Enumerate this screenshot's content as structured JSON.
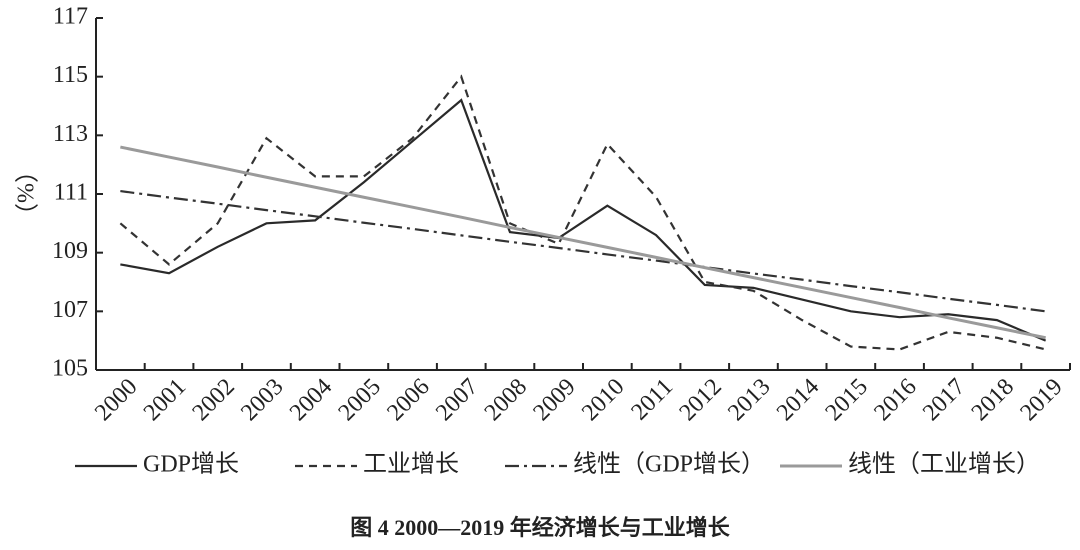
{
  "chart_data": {
    "type": "line",
    "title": "图 4 2000—2019 年经济增长与工业增长",
    "y_label": "（%）",
    "categories": [
      "2000",
      "2001",
      "2002",
      "2003",
      "2004",
      "2005",
      "2006",
      "2007",
      "2008",
      "2009",
      "2010",
      "2011",
      "2012",
      "2013",
      "2014",
      "2015",
      "2016",
      "2017",
      "2018",
      "2019"
    ],
    "series": [
      {
        "name": "GDP增长",
        "color": "#2a2a2a",
        "style": "solid",
        "values": [
          108.6,
          108.3,
          109.2,
          110.0,
          110.1,
          111.4,
          112.8,
          114.2,
          109.7,
          109.5,
          110.6,
          109.6,
          107.9,
          107.8,
          107.4,
          107.0,
          106.8,
          106.9,
          106.7,
          106.0
        ]
      },
      {
        "name": "工业增长",
        "color": "#333333",
        "style": "dashed",
        "values": [
          110.0,
          108.6,
          110.0,
          112.9,
          111.6,
          111.6,
          112.9,
          115.0,
          110.0,
          109.3,
          112.7,
          110.9,
          108.0,
          107.7,
          106.7,
          105.8,
          105.7,
          106.3,
          106.1,
          105.7
        ]
      },
      {
        "name": "线性（GDP增长）",
        "color": "#333333",
        "style": "dashdot",
        "values": [
          111.1,
          110.88,
          110.67,
          110.45,
          110.24,
          110.02,
          109.81,
          109.59,
          109.37,
          109.16,
          108.94,
          108.73,
          108.51,
          108.29,
          108.08,
          107.86,
          107.65,
          107.43,
          107.22,
          107.0
        ]
      },
      {
        "name": "线性（工业增长）",
        "color": "#9a9a9a",
        "style": "solid",
        "values": [
          112.6,
          112.26,
          111.92,
          111.57,
          111.23,
          110.89,
          110.55,
          110.21,
          109.86,
          109.52,
          109.18,
          108.84,
          108.49,
          108.15,
          107.81,
          107.47,
          107.13,
          106.78,
          106.44,
          106.1
        ]
      }
    ],
    "ylim": [
      105,
      117
    ],
    "yticks": [
      105,
      107,
      109,
      111,
      113,
      115,
      117
    ],
    "grid": false
  }
}
